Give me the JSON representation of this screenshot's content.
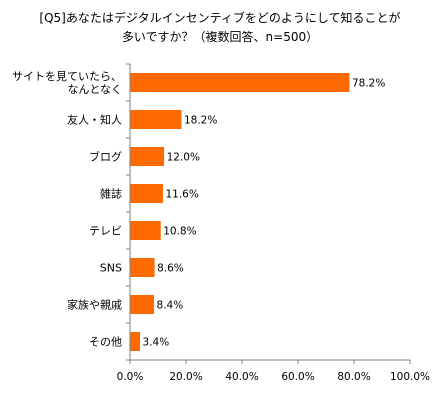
{
  "chart_data": {
    "type": "bar",
    "orientation": "horizontal",
    "title_lines": [
      "[Q5]あなたはデジタルインセンティブをどのようにして知ることが",
      "多いですか？（複数回答、n=500）"
    ],
    "categories": [
      [
        "サイトを見ていたら、",
        "なんとなく"
      ],
      [
        "友人・知人"
      ],
      [
        "ブログ"
      ],
      [
        "雑誌"
      ],
      [
        "テレビ"
      ],
      [
        "SNS"
      ],
      [
        "家族や親戚"
      ],
      [
        "その他"
      ]
    ],
    "values": [
      78.2,
      18.2,
      12.0,
      11.6,
      10.8,
      8.6,
      8.4,
      3.4
    ],
    "value_labels": [
      "78.2%",
      "18.2%",
      "12.0%",
      "11.6%",
      "10.8%",
      "8.6%",
      "8.4%",
      "3.4%"
    ],
    "xlim": [
      0,
      100
    ],
    "x_ticks": [
      0,
      20,
      40,
      60,
      80,
      100
    ],
    "x_tick_labels": [
      "0.0%",
      "20.0%",
      "40.0%",
      "60.0%",
      "80.0%",
      "100.0%"
    ],
    "grid": false,
    "legend": "none",
    "colors": {
      "bar": "#ff6a00",
      "axis": "#808080",
      "text": "#000000"
    }
  }
}
